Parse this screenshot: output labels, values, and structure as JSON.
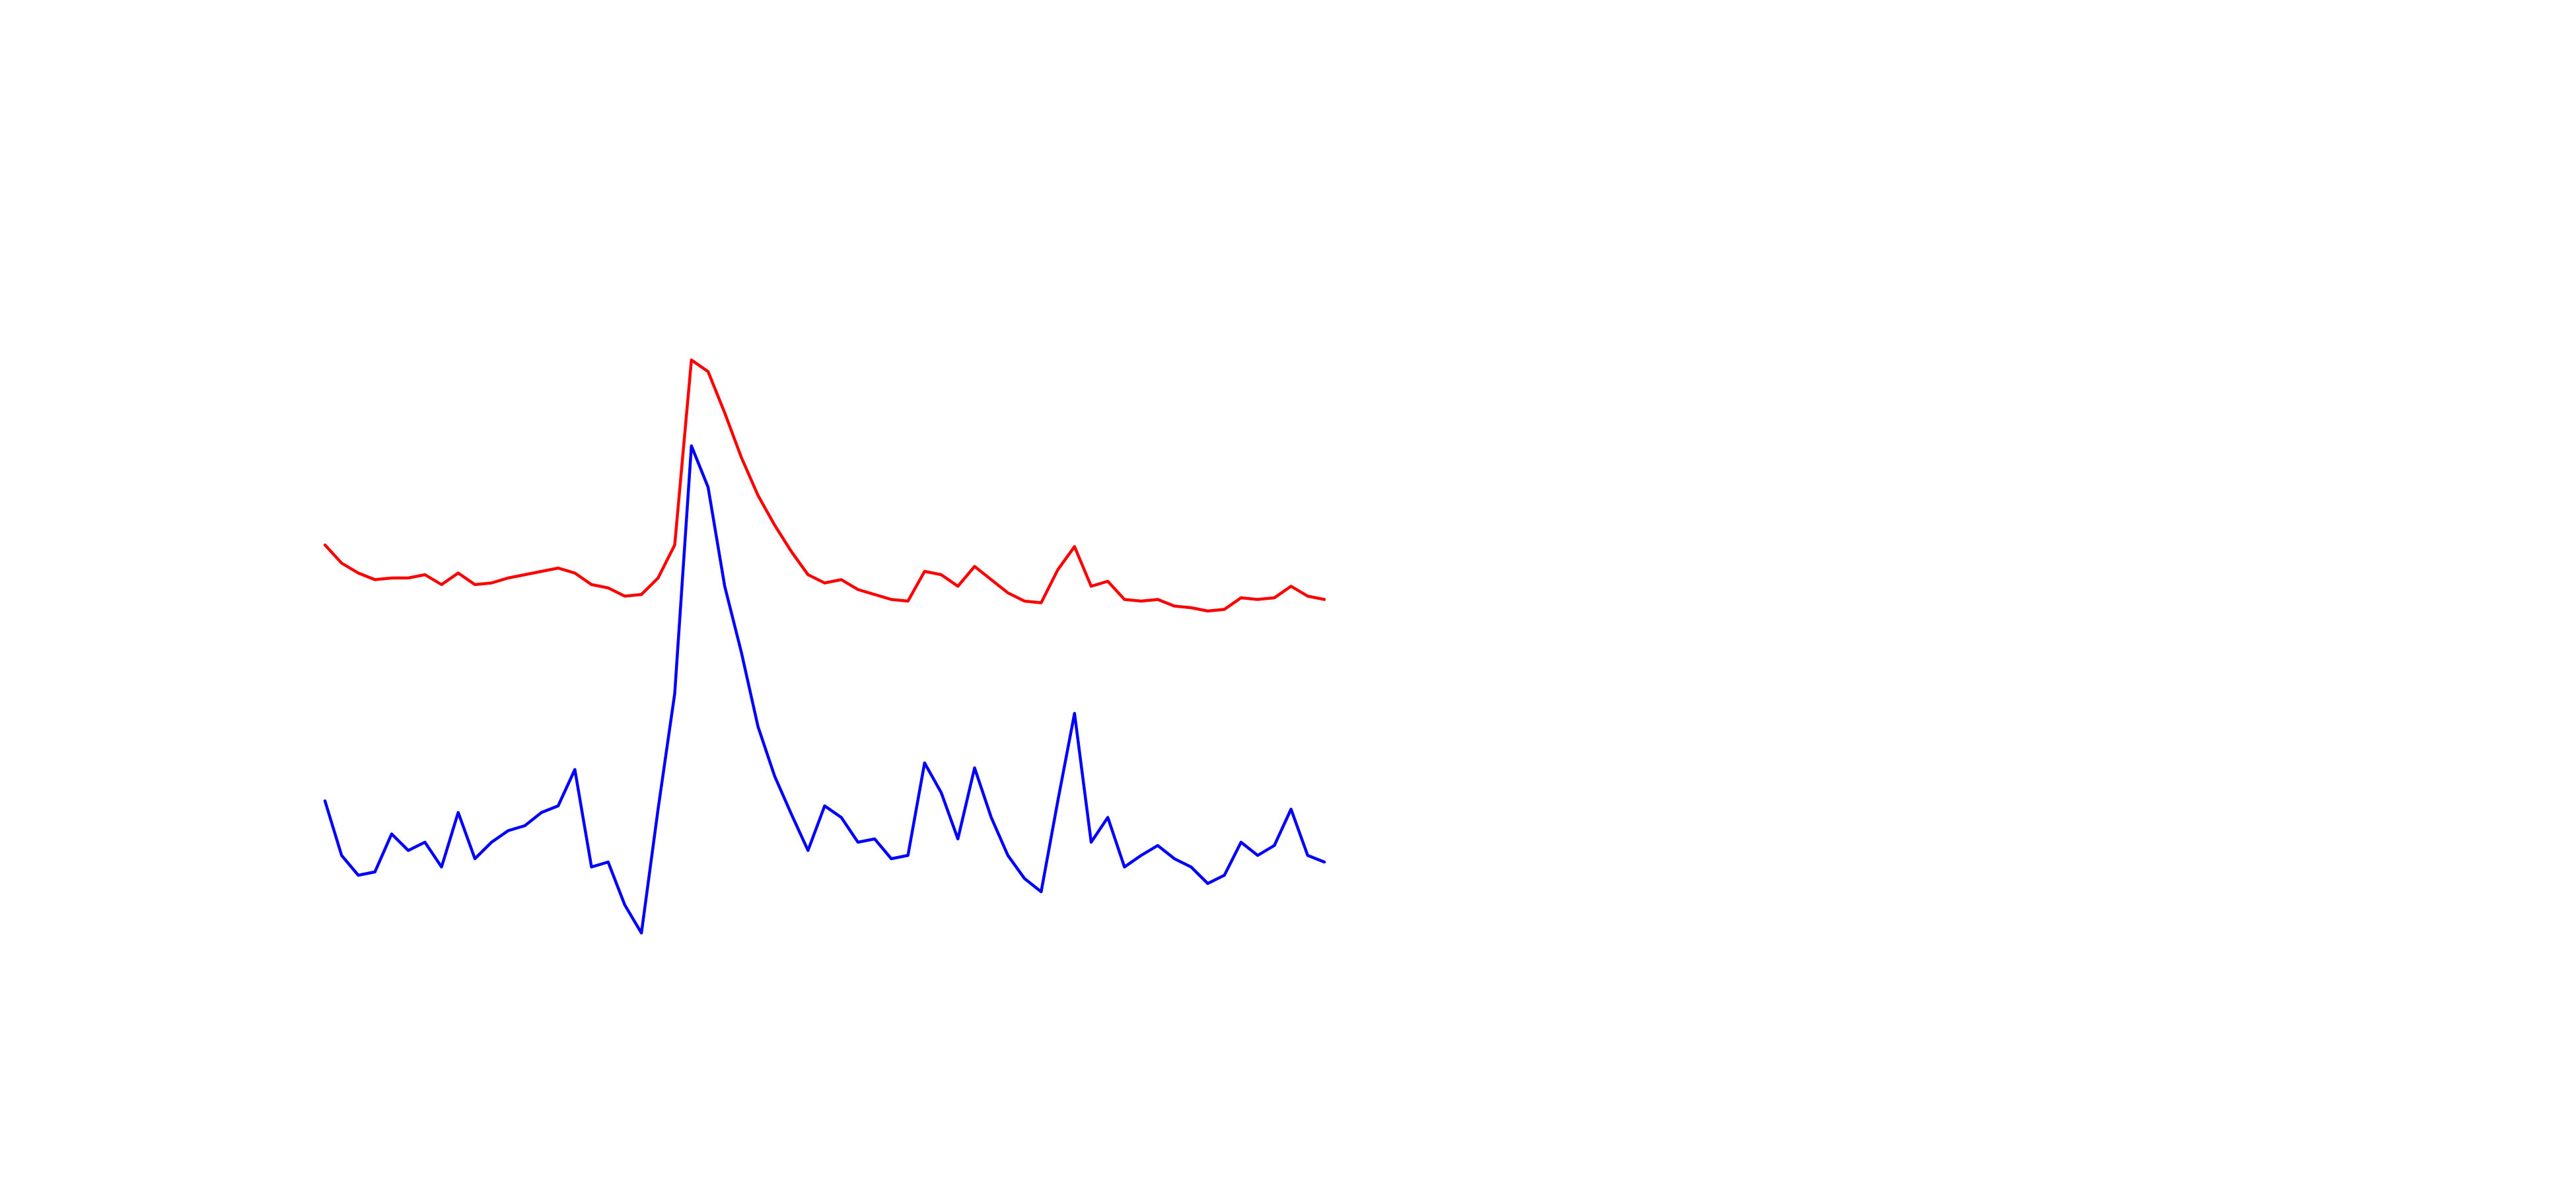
{
  "chart_data": {
    "type": "line",
    "x": [
      0,
      1,
      2,
      3,
      4,
      5,
      6,
      7,
      8,
      9,
      10,
      11,
      12,
      13,
      14,
      15,
      16,
      17,
      18,
      19,
      20,
      21,
      22,
      23,
      24,
      25,
      26,
      27,
      28,
      29,
      30,
      31,
      32,
      33,
      34,
      35,
      36,
      37,
      38,
      39,
      40,
      41,
      42,
      43,
      44,
      45,
      46,
      47,
      48,
      49,
      50,
      51,
      52,
      53,
      54,
      55,
      56,
      57,
      58,
      59,
      60
    ],
    "xlim": [
      0,
      60
    ],
    "ylim": [
      0,
      100
    ],
    "series": [
      {
        "name": "red",
        "color": "#ff0000",
        "values": [
          67.5,
          64.75,
          63.25,
          62.25,
          62.5,
          62.5,
          63,
          61.5,
          63.25,
          61.5,
          61.75,
          62.5,
          63,
          63.5,
          64,
          63.25,
          61.5,
          61,
          59.75,
          60,
          62.5,
          67.5,
          95.5,
          93.75,
          87.5,
          80.75,
          75,
          70.5,
          66.5,
          63,
          61.75,
          62.25,
          60.75,
          60,
          59.25,
          59,
          63.5,
          63,
          61.25,
          64.25,
          62.25,
          60.25,
          59,
          58.75,
          63.75,
          67.25,
          61.25,
          62,
          59.25,
          59,
          59.25,
          58.25,
          58,
          57.5,
          57.75,
          59.5,
          59.25,
          59.5,
          61.25,
          59.75,
          59.25
        ]
      },
      {
        "name": "blue",
        "color": "#0000ff",
        "values": [
          28.75,
          20.5,
          17.5,
          18,
          23.75,
          21.25,
          22.5,
          18.75,
          27,
          20,
          22.5,
          24.25,
          25,
          27,
          28,
          33.5,
          18.75,
          19.5,
          13,
          8.75,
          27.5,
          45,
          82.5,
          76.25,
          61.25,
          51.25,
          40,
          32.5,
          26.75,
          21.25,
          28,
          26.25,
          22.5,
          23,
          20,
          20.5,
          34.5,
          30,
          23,
          33.75,
          26.25,
          20.5,
          17,
          15,
          28.75,
          42,
          22.5,
          26.25,
          18.75,
          20.5,
          22,
          20,
          18.75,
          16.25,
          17.5,
          22.5,
          20.5,
          22,
          27.5,
          20.5,
          19.5
        ]
      }
    ]
  }
}
